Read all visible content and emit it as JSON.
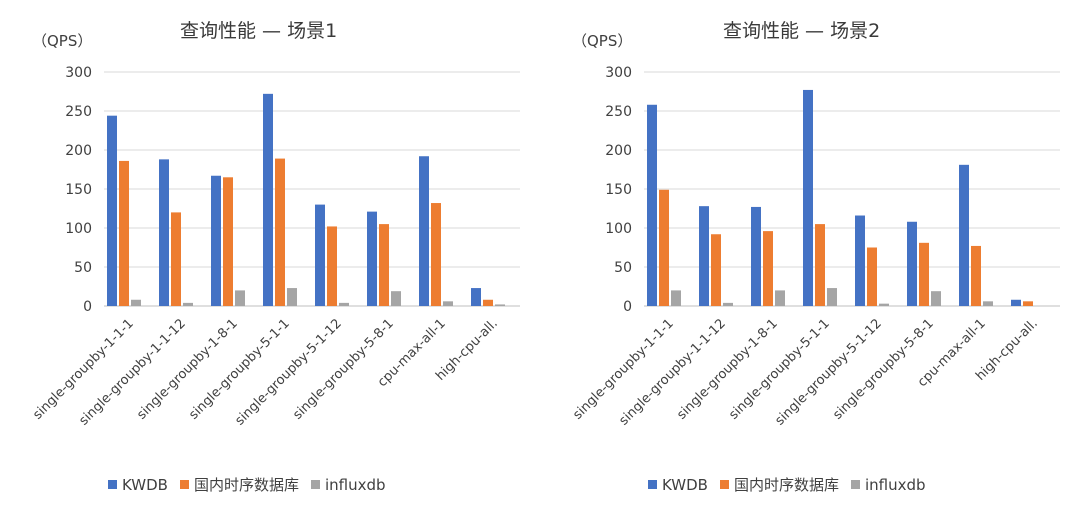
{
  "chart_data": [
    {
      "type": "bar",
      "title": "查询性能 — 场景1",
      "ylabel": "（QPS）",
      "ylim": [
        0,
        300
      ],
      "yticks": [
        0,
        50,
        100,
        150,
        200,
        250,
        300
      ],
      "grid": true,
      "legend": "bottom",
      "categories": [
        "single-groupby-1-1-1",
        "single-groupby-1-1-12",
        "single-groupby-1-8-1",
        "single-groupby-5-1-1",
        "single-groupby-5-1-12",
        "single-groupby-5-8-1",
        "cpu-max-all-1",
        "high-cpu-all."
      ],
      "series": [
        {
          "name": "KWDB",
          "color": "#4472c4",
          "values": [
            244,
            188,
            167,
            272,
            130,
            121,
            192,
            23
          ]
        },
        {
          "name": "国内时序数据库",
          "color": "#ed7d31",
          "values": [
            186,
            120,
            165,
            189,
            102,
            105,
            132,
            8
          ]
        },
        {
          "name": "influxdb",
          "color": "#a5a5a5",
          "values": [
            8,
            4,
            20,
            23,
            4,
            19,
            6,
            2
          ]
        }
      ]
    },
    {
      "type": "bar",
      "title": "查询性能 — 场景2",
      "ylabel": "（QPS）",
      "ylim": [
        0,
        300
      ],
      "yticks": [
        0,
        50,
        100,
        150,
        200,
        250,
        300
      ],
      "grid": true,
      "legend": "bottom",
      "categories": [
        "single-groupby-1-1-1",
        "single-groupby-1-1-12",
        "single-groupby-1-8-1",
        "single-groupby-5-1-1",
        "single-groupby-5-1-12",
        "single-groupby-5-8-1",
        "cpu-max-all-1",
        "high-cpu-all."
      ],
      "series": [
        {
          "name": "KWDB",
          "color": "#4472c4",
          "values": [
            258,
            128,
            127,
            277,
            116,
            108,
            181,
            8
          ]
        },
        {
          "name": "国内时序数据库",
          "color": "#ed7d31",
          "values": [
            149,
            92,
            96,
            105,
            75,
            81,
            77,
            6
          ]
        },
        {
          "name": "influxdb",
          "color": "#a5a5a5",
          "values": [
            20,
            4,
            20,
            23,
            3,
            19,
            6,
            0
          ]
        }
      ]
    }
  ]
}
